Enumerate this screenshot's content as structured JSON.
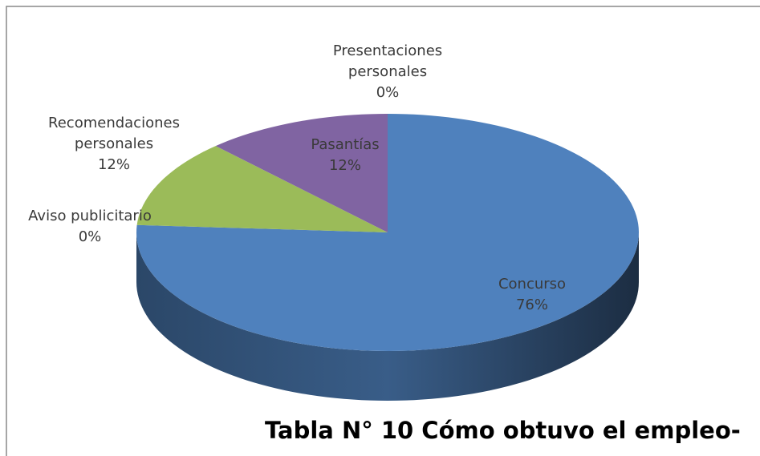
{
  "chart_data": {
    "type": "pie",
    "title": "Tabla N° 10 Cómo obtuvo el empleo-",
    "categories": [
      "Concurso",
      "Aviso publicitario",
      "Recomendaciones personales",
      "Pasantías",
      "Presentaciones personales"
    ],
    "values": [
      76,
      0,
      12,
      12,
      0
    ],
    "value_labels": [
      "76%",
      "0%",
      "12%",
      "12%",
      "0%"
    ],
    "colors": [
      "#4f81bd",
      "#c0504d",
      "#9bbb59",
      "#8064a2",
      "#4bacc6"
    ],
    "three_d": true
  }
}
